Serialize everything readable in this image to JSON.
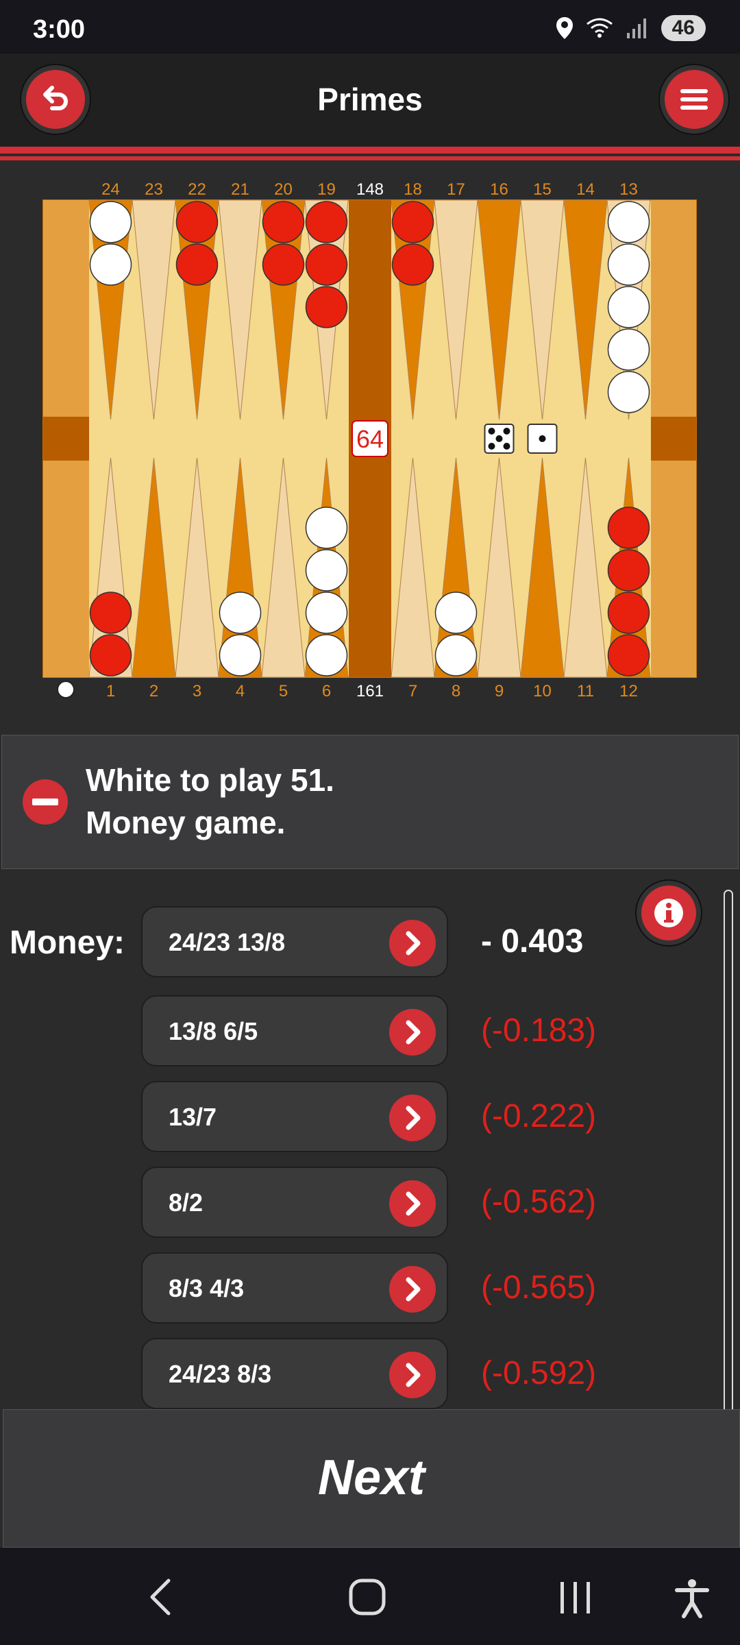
{
  "status_bar": {
    "time": "3:00",
    "battery": "46"
  },
  "header": {
    "title": "Primes"
  },
  "board": {
    "top_points": [
      "24",
      "23",
      "22",
      "21",
      "20",
      "19",
      "18",
      "17",
      "16",
      "15",
      "14",
      "13"
    ],
    "bottom_points": [
      "1",
      "2",
      "3",
      "4",
      "5",
      "6",
      "7",
      "8",
      "9",
      "10",
      "11",
      "12"
    ],
    "pip_top": "148",
    "pip_bottom": "161",
    "cube": "64",
    "dice": [
      5,
      1
    ],
    "checkers": [
      {
        "point": 24,
        "color": "white",
        "count": 2
      },
      {
        "point": 22,
        "color": "red",
        "count": 2
      },
      {
        "point": 20,
        "color": "red",
        "count": 2
      },
      {
        "point": 19,
        "color": "red",
        "count": 3
      },
      {
        "point": 18,
        "color": "red",
        "count": 2
      },
      {
        "point": 13,
        "color": "white",
        "count": 5
      },
      {
        "point": 1,
        "color": "red",
        "count": 2
      },
      {
        "point": 4,
        "color": "white",
        "count": 2
      },
      {
        "point": 6,
        "color": "white",
        "count": 4
      },
      {
        "point": 8,
        "color": "white",
        "count": 2
      },
      {
        "point": 12,
        "color": "red",
        "count": 4
      }
    ]
  },
  "status": {
    "line1": "White to play 51.",
    "line2": "Money game."
  },
  "analysis": {
    "label": "Money:",
    "moves": [
      {
        "move": "24/23 13/8",
        "equity": "- 0.403"
      },
      {
        "move": "13/8 6/5",
        "equity": "(-0.183)"
      },
      {
        "move": "13/7",
        "equity": "(-0.222)"
      },
      {
        "move": "8/2",
        "equity": "(-0.562)"
      },
      {
        "move": "8/3 4/3",
        "equity": "(-0.565)"
      },
      {
        "move": "24/23 8/3",
        "equity": "(-0.592)"
      }
    ]
  },
  "footer": {
    "next_label": "Next"
  },
  "colors": {
    "accent": "#d32f36",
    "checker_red": "#e8200e",
    "point_dark": "#e08000",
    "point_light": "#f3d6a6"
  },
  "icons": [
    "back-arrow-icon",
    "menu-icon",
    "location-icon",
    "wifi-icon",
    "signal-icon",
    "minus-icon",
    "chevron-right-icon",
    "info-icon",
    "nav-back-icon",
    "nav-home-icon",
    "nav-recents-icon",
    "accessibility-icon"
  ]
}
